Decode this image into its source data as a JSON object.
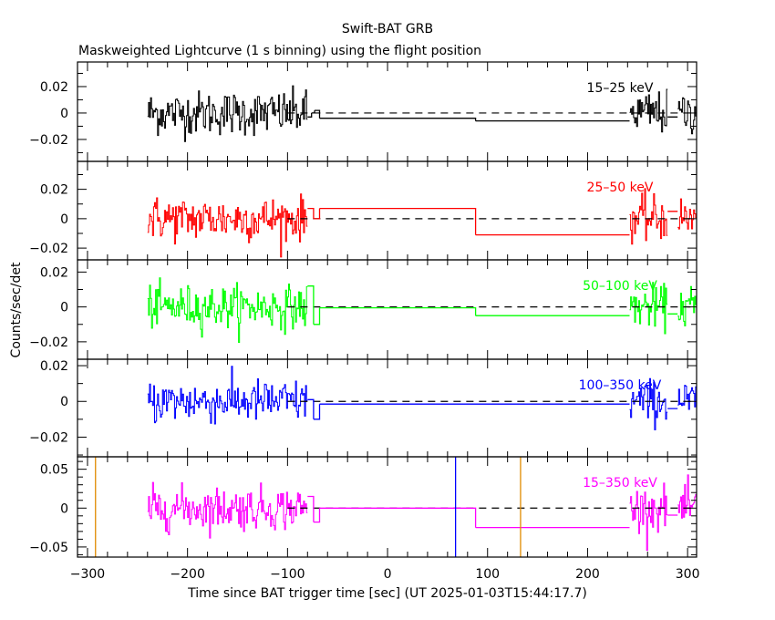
{
  "chart_data": {
    "type": "line",
    "title": "Swift-BAT GRB",
    "subtitle": "Maskweighted Lightcurve (1 s binning) using the flight position",
    "xlabel": "Time since BAT trigger time [sec] (UT 2025-01-03T15:44:17.7)",
    "ylabel": "Counts/sec/det",
    "xlim": [
      -310,
      309
    ],
    "x_ticks": [
      -300,
      -200,
      -100,
      0,
      100,
      200,
      300
    ],
    "x_tick_labels": [
      "−300",
      "−200",
      "−100",
      "0",
      "100",
      "200",
      "300"
    ],
    "x_minor_step": 20,
    "grid": false,
    "zero_line": {
      "style": "dashed",
      "color": "#000000",
      "from": -100,
      "to": 309
    },
    "data_segments": [
      {
        "from": -240,
        "to": -80
      },
      {
        "from": 242,
        "to": 280
      },
      {
        "from": 290,
        "to": 309
      }
    ],
    "vertical_markers": [
      {
        "name": "marker-orange-left",
        "x": -292,
        "color": "#e08a00"
      },
      {
        "name": "marker-blue",
        "x": 68,
        "color": "#0000ff"
      },
      {
        "name": "marker-orange-right",
        "x": 133,
        "color": "#e08a00"
      }
    ],
    "vertical_markers_panel": 4,
    "panels": [
      {
        "label": "15–25 keV",
        "color": "#000000",
        "ylim": [
          -0.0366,
          0.0386
        ],
        "y_ticks": [
          -0.02,
          0,
          0.02
        ],
        "y_tick_labels": [
          "−0.02",
          "0",
          "0.02"
        ],
        "y_minor_step": 0.01,
        "noise_sigma": 0.011,
        "steps": [
          {
            "from": -80,
            "to": -76,
            "y": -0.003
          },
          {
            "from": -76,
            "to": -73,
            "y": 0.0
          },
          {
            "from": -73,
            "to": -68,
            "y": 0.002
          },
          {
            "from": -68,
            "to": 88,
            "y": -0.004
          },
          {
            "from": 88,
            "to": 242,
            "y": -0.006
          },
          {
            "from": 280,
            "to": 290,
            "y": -0.003
          }
        ]
      },
      {
        "label": "25–50 keV",
        "color": "#ff0000",
        "ylim": [
          -0.028,
          0.039
        ],
        "y_ticks": [
          -0.02,
          0,
          0.02
        ],
        "y_tick_labels": [
          "−0.02",
          "0",
          "0.02"
        ],
        "y_minor_step": 0.01,
        "noise_sigma": 0.01,
        "steps": [
          {
            "from": -80,
            "to": -74,
            "y": 0.007
          },
          {
            "from": -74,
            "to": -68,
            "y": 0.0
          },
          {
            "from": -68,
            "to": 88,
            "y": 0.007
          },
          {
            "from": 88,
            "to": 242,
            "y": -0.011
          },
          {
            "from": 280,
            "to": 290,
            "y": 0.005
          }
        ]
      },
      {
        "label": "50–100 keV",
        "color": "#00ff00",
        "ylim": [
          -0.03,
          0.027
        ],
        "y_ticks": [
          -0.02,
          0,
          0.02
        ],
        "y_tick_labels": [
          "−0.02",
          "0",
          "0.02"
        ],
        "y_minor_step": 0.01,
        "noise_sigma": 0.008,
        "steps": [
          {
            "from": -80,
            "to": -74,
            "y": 0.012
          },
          {
            "from": -74,
            "to": -68,
            "y": -0.01
          },
          {
            "from": -68,
            "to": 88,
            "y": -0.0005
          },
          {
            "from": 88,
            "to": 242,
            "y": -0.005
          },
          {
            "from": 280,
            "to": 290,
            "y": -0.004
          }
        ]
      },
      {
        "label": "100–350 keV",
        "color": "#0000ff",
        "ylim": [
          -0.031,
          0.0236
        ],
        "y_ticks": [
          -0.02,
          0,
          0.02
        ],
        "y_tick_labels": [
          "−0.02",
          "0",
          "0.02"
        ],
        "y_minor_step": 0.01,
        "noise_sigma": 0.008,
        "steps": [
          {
            "from": -80,
            "to": -74,
            "y": 0.001
          },
          {
            "from": -74,
            "to": -68,
            "y": -0.01
          },
          {
            "from": -68,
            "to": 242,
            "y": -0.0015
          },
          {
            "from": 280,
            "to": 290,
            "y": -0.004
          }
        ]
      },
      {
        "label": "15–350 keV",
        "color": "#ff00ff",
        "ylim": [
          -0.063,
          0.066
        ],
        "y_ticks": [
          -0.05,
          0,
          0.05
        ],
        "y_tick_labels": [
          "−0.05",
          "0",
          "0.05"
        ],
        "y_minor_step": 0.01,
        "noise_sigma": 0.018,
        "steps": [
          {
            "from": -80,
            "to": -74,
            "y": 0.015
          },
          {
            "from": -74,
            "to": -68,
            "y": -0.018
          },
          {
            "from": -68,
            "to": 88,
            "y": 0.0
          },
          {
            "from": 88,
            "to": 242,
            "y": -0.025
          },
          {
            "from": 280,
            "to": 290,
            "y": -0.009
          }
        ]
      }
    ]
  }
}
